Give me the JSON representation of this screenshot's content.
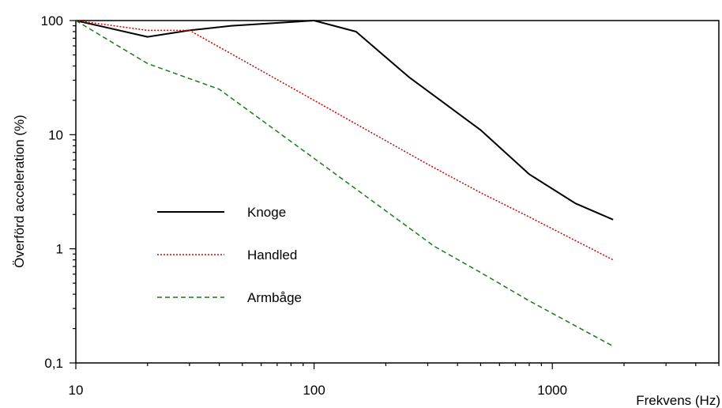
{
  "chart_data": {
    "type": "line",
    "title": "",
    "xlabel": "Frekvens  (Hz)",
    "ylabel": "Överförd  acceleration  (%)",
    "xscale": "log",
    "yscale": "log",
    "xlim": [
      10,
      5000
    ],
    "ylim": [
      0.1,
      100
    ],
    "grid": false,
    "legend_position": "inside-lower-left",
    "x_ticks": [
      {
        "value": 10,
        "label": "10"
      },
      {
        "value": 100,
        "label": "100"
      },
      {
        "value": 1000,
        "label": "1000"
      }
    ],
    "y_ticks": [
      {
        "value": 0.1,
        "label": "0,1"
      },
      {
        "value": 1,
        "label": "1"
      },
      {
        "value": 10,
        "label": "10"
      },
      {
        "value": 100,
        "label": "100"
      }
    ],
    "series": [
      {
        "name": "Knoge",
        "color": "#000000",
        "style": "solid",
        "x": [
          10,
          20,
          30,
          45,
          100,
          150,
          250,
          500,
          800,
          1250,
          1800
        ],
        "values": [
          100,
          72,
          82,
          90,
          100,
          80,
          32,
          11,
          4.5,
          2.5,
          1.8
        ]
      },
      {
        "name": "Handled",
        "color": "#cc0000",
        "style": "dotted",
        "x": [
          10,
          20,
          30,
          100,
          300,
          500,
          800,
          1800
        ],
        "values": [
          100,
          82,
          82,
          20,
          5.5,
          3.1,
          1.9,
          0.8
        ]
      },
      {
        "name": "Armbåge",
        "color": "#1a7a1a",
        "style": "dashed",
        "x": [
          10,
          20,
          40,
          100,
          320,
          500,
          800,
          1800
        ],
        "values": [
          100,
          42,
          25,
          6.2,
          1.05,
          0.62,
          0.35,
          0.14
        ]
      }
    ]
  }
}
